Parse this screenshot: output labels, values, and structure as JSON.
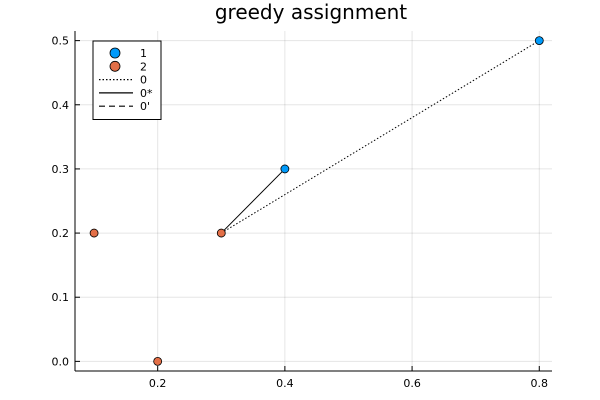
{
  "chart_data": {
    "type": "scatter",
    "title": "greedy assignment",
    "xlabel": "",
    "ylabel": "",
    "xlim": [
      0.07,
      0.82
    ],
    "ylim": [
      -0.015,
      0.515
    ],
    "xticks": [
      0.2,
      0.4,
      0.6,
      0.8
    ],
    "xtick_labels": [
      "0.2",
      "0.4",
      "0.6",
      "0.8"
    ],
    "yticks": [
      0.0,
      0.1,
      0.2,
      0.3,
      0.4,
      0.5
    ],
    "ytick_labels": [
      "0.0",
      "0.1",
      "0.2",
      "0.3",
      "0.4",
      "0.5"
    ],
    "grid": true,
    "legend_position": "top-left",
    "series": [
      {
        "name": "1",
        "kind": "scatter",
        "color": "#009AFA",
        "points": [
          [
            0.4,
            0.3
          ],
          [
            0.8,
            0.5
          ]
        ]
      },
      {
        "name": "2",
        "kind": "scatter",
        "color": "#E36F47",
        "points": [
          [
            0.1,
            0.2
          ],
          [
            0.2,
            0.0
          ],
          [
            0.3,
            0.2
          ]
        ]
      },
      {
        "name": "0",
        "kind": "line",
        "style": "dotted",
        "color": "#000000",
        "points": [
          [
            0.3,
            0.2
          ],
          [
            0.8,
            0.5
          ]
        ]
      },
      {
        "name": "0*",
        "kind": "line",
        "style": "solid",
        "color": "#000000",
        "points": [
          [
            0.3,
            0.2
          ],
          [
            0.4,
            0.3
          ]
        ]
      },
      {
        "name": "0'",
        "kind": "line",
        "style": "dashed",
        "color": "#000000",
        "points": []
      }
    ]
  }
}
